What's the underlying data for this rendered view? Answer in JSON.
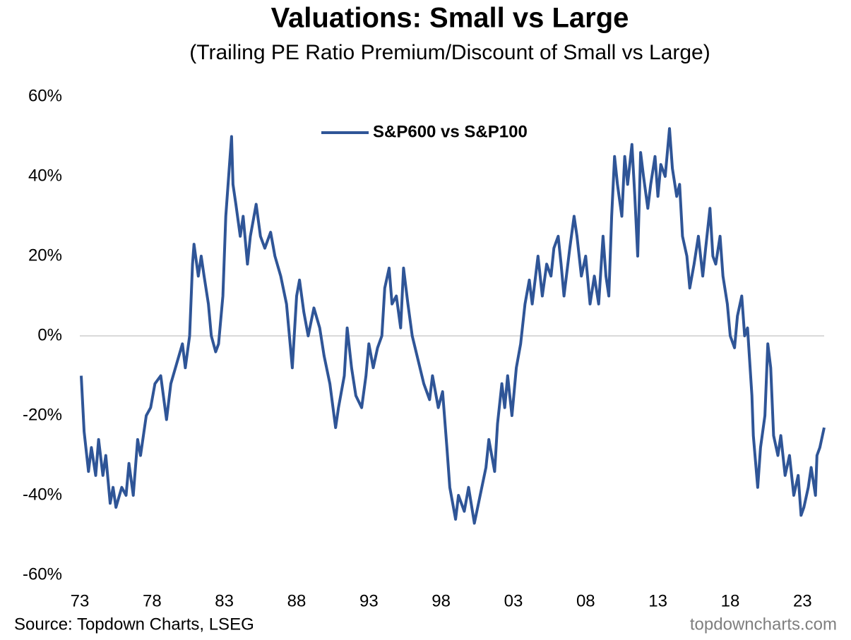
{
  "chart_data": {
    "type": "line",
    "title": "Valuations: Small vs Large",
    "subtitle": "(Trailing PE Ratio Premium/Discount of Small vs Large)",
    "source": "Source: Topdown Charts, LSEG",
    "watermark": "topdowncharts.com",
    "legend": "top",
    "xlim": [
      1973,
      2024.5
    ],
    "xticks": [
      {
        "value": 1973,
        "label": "73"
      },
      {
        "value": 1978,
        "label": "78"
      },
      {
        "value": 1983,
        "label": "83"
      },
      {
        "value": 1988,
        "label": "88"
      },
      {
        "value": 1993,
        "label": "93"
      },
      {
        "value": 1998,
        "label": "98"
      },
      {
        "value": 2003,
        "label": "03"
      },
      {
        "value": 2008,
        "label": "08"
      },
      {
        "value": 2013,
        "label": "13"
      },
      {
        "value": 2018,
        "label": "18"
      },
      {
        "value": 2023,
        "label": "23"
      }
    ],
    "ylim": [
      -60,
      60
    ],
    "yticks": [
      {
        "value": -60,
        "label": "-60%"
      },
      {
        "value": -40,
        "label": "-40%"
      },
      {
        "value": -20,
        "label": "-20%"
      },
      {
        "value": 0,
        "label": "0%"
      },
      {
        "value": 20,
        "label": "20%"
      },
      {
        "value": 40,
        "label": "40%"
      },
      {
        "value": 60,
        "label": "60%"
      }
    ],
    "zero_line": true,
    "x": [
      1973.1,
      1973.3,
      1973.6,
      1973.8,
      1974.1,
      1974.3,
      1974.6,
      1974.8,
      1975.1,
      1975.3,
      1975.5,
      1975.9,
      1976.2,
      1976.4,
      1976.7,
      1977.0,
      1977.2,
      1977.6,
      1977.9,
      1978.2,
      1978.6,
      1979.0,
      1979.3,
      1979.7,
      1980.1,
      1980.3,
      1980.6,
      1980.8,
      1980.9,
      1981.2,
      1981.4,
      1981.6,
      1981.9,
      1982.1,
      1982.4,
      1982.6,
      1982.9,
      1983.1,
      1983.4,
      1983.5,
      1983.6,
      1983.8,
      1984.1,
      1984.3,
      1984.6,
      1984.8,
      1985.2,
      1985.5,
      1985.8,
      1986.2,
      1986.5,
      1986.9,
      1987.3,
      1987.5,
      1987.7,
      1988.0,
      1988.2,
      1988.5,
      1988.8,
      1989.2,
      1989.6,
      1989.9,
      1990.3,
      1990.7,
      1990.9,
      1991.3,
      1991.5,
      1991.8,
      1992.1,
      1992.5,
      1992.8,
      1993.0,
      1993.3,
      1993.6,
      1993.9,
      1994.1,
      1994.4,
      1994.6,
      1994.9,
      1995.2,
      1995.4,
      1995.7,
      1996.0,
      1996.4,
      1996.8,
      1997.2,
      1997.4,
      1997.8,
      1998.1,
      1998.4,
      1998.6,
      1999.0,
      1999.2,
      1999.6,
      1999.9,
      2000.3,
      2000.7,
      2001.1,
      2001.3,
      2001.7,
      2001.9,
      2002.2,
      2002.4,
      2002.6,
      2002.9,
      2003.2,
      2003.5,
      2003.8,
      2004.1,
      2004.3,
      2004.7,
      2005.0,
      2005.3,
      2005.6,
      2005.8,
      2006.1,
      2006.3,
      2006.5,
      2006.9,
      2007.2,
      2007.4,
      2007.7,
      2008.0,
      2008.3,
      2008.6,
      2008.9,
      2009.2,
      2009.4,
      2009.6,
      2009.8,
      2010.0,
      2010.2,
      2010.5,
      2010.7,
      2010.9,
      2011.2,
      2011.4,
      2011.6,
      2011.8,
      2012.0,
      2012.3,
      2012.5,
      2012.8,
      2013.0,
      2013.2,
      2013.5,
      2013.8,
      2014.0,
      2014.3,
      2014.5,
      2014.7,
      2015.0,
      2015.2,
      2015.5,
      2015.8,
      2016.1,
      2016.3,
      2016.6,
      2016.8,
      2017.0,
      2017.3,
      2017.5,
      2017.8,
      2018.0,
      2018.3,
      2018.5,
      2018.8,
      2019.0,
      2019.2,
      2019.5,
      2019.6,
      2019.9,
      2020.1,
      2020.4,
      2020.6,
      2020.8,
      2021.0,
      2021.3,
      2021.5,
      2021.8,
      2022.1,
      2022.4,
      2022.7,
      2022.9,
      2023.1,
      2023.4,
      2023.6,
      2023.9,
      2024.0,
      2024.2,
      2024.5
    ],
    "series": [
      {
        "name": "S&P600 vs S&P100",
        "color": "#2f5597",
        "values": [
          -10,
          -24,
          -34,
          -28,
          -35,
          -26,
          -35,
          -30,
          -42,
          -38,
          -43,
          -38,
          -40,
          -32,
          -40,
          -26,
          -30,
          -20,
          -18,
          -12,
          -10,
          -21,
          -12,
          -7,
          -2,
          -8,
          0,
          18,
          23,
          15,
          20,
          15,
          8,
          0,
          -4,
          -2,
          10,
          30,
          45,
          50,
          38,
          33,
          25,
          30,
          18,
          25,
          33,
          25,
          22,
          26,
          20,
          15,
          8,
          0,
          -8,
          10,
          14,
          6,
          0,
          7,
          2,
          -5,
          -12,
          -23,
          -18,
          -10,
          2,
          -8,
          -15,
          -18,
          -10,
          -2,
          -8,
          -3,
          0,
          12,
          17,
          8,
          10,
          2,
          17,
          8,
          0,
          -6,
          -12,
          -16,
          -10,
          -18,
          -14,
          -28,
          -38,
          -46,
          -40,
          -44,
          -38,
          -47,
          -40,
          -33,
          -26,
          -34,
          -22,
          -12,
          -18,
          -10,
          -20,
          -8,
          -2,
          8,
          14,
          8,
          20,
          10,
          18,
          15,
          22,
          25,
          18,
          10,
          22,
          30,
          25,
          15,
          20,
          8,
          15,
          8,
          25,
          15,
          10,
          30,
          45,
          38,
          30,
          45,
          38,
          48,
          35,
          20,
          46,
          40,
          32,
          38,
          45,
          35,
          43,
          40,
          52,
          42,
          35,
          38,
          25,
          20,
          12,
          18,
          25,
          15,
          22,
          32,
          20,
          18,
          25,
          15,
          8,
          0,
          -3,
          5,
          10,
          0,
          2,
          -15,
          -25,
          -38,
          -28,
          -20,
          -2,
          -8,
          -25,
          -30,
          -25,
          -35,
          -30,
          -40,
          -35,
          -45,
          -43,
          -38,
          -33,
          -40,
          -30,
          -28,
          -23
        ]
      }
    ]
  }
}
